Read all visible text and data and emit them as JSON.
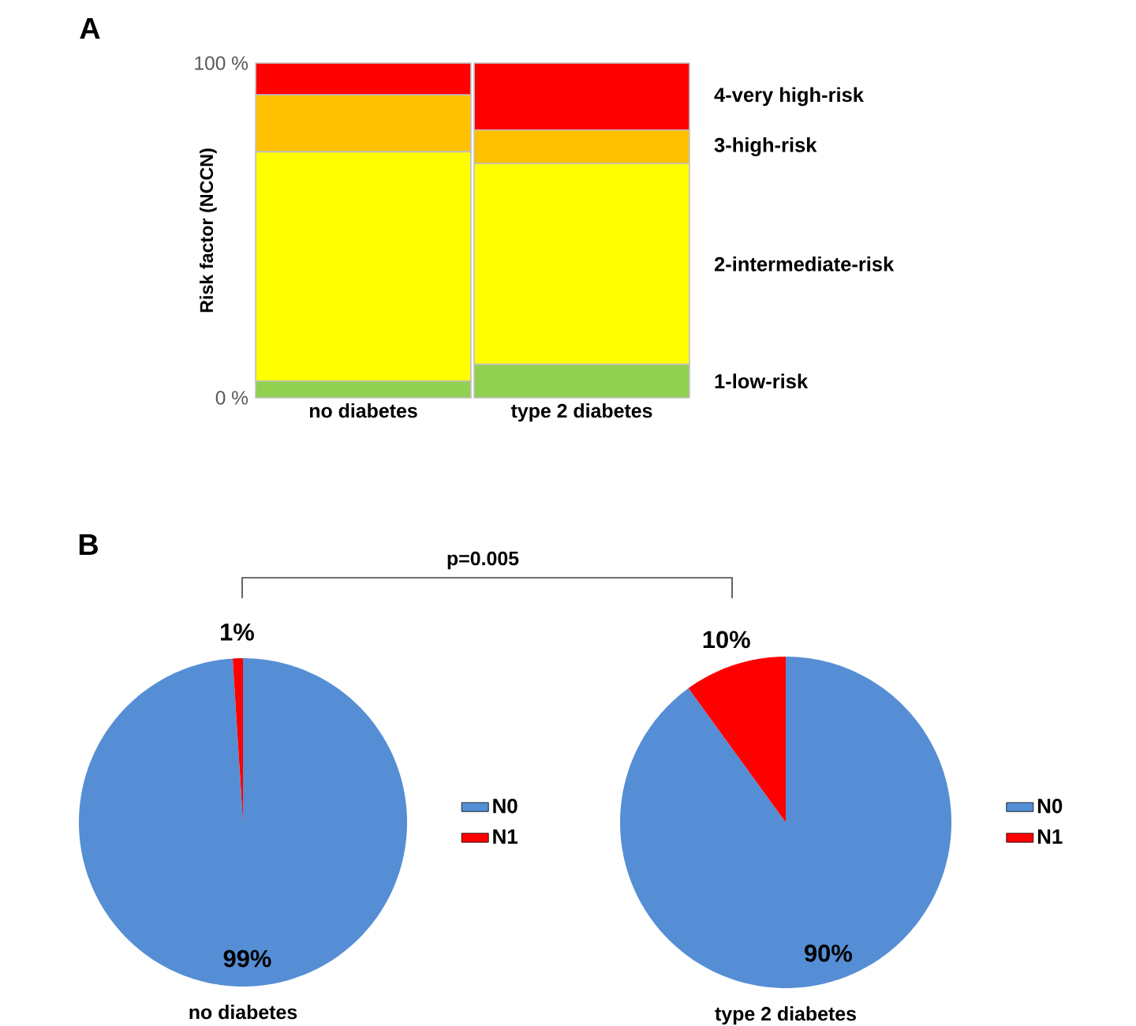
{
  "chart_data": [
    {
      "type": "bar",
      "title": "A",
      "stacked": true,
      "categories": [
        "no diabetes",
        "type 2 diabetes"
      ],
      "ylabel": "Risk factor (NCCN)",
      "ylim": [
        0,
        100
      ],
      "yticks": [
        {
          "value": 0,
          "label": "0 %"
        },
        {
          "value": 100,
          "label": "100 %"
        }
      ],
      "series": [
        {
          "name": "1-low-risk",
          "color": "#92d050",
          "values": [
            5,
            10
          ]
        },
        {
          "name": "2-intermediate-risk",
          "color": "#ffff00",
          "values": [
            68.5,
            60
          ]
        },
        {
          "name": "3-high-risk",
          "color": "#ffc000",
          "values": [
            17,
            10
          ]
        },
        {
          "name": "4-very high-risk",
          "color": "#ff0000",
          "values": [
            9.5,
            20
          ]
        }
      ]
    },
    {
      "type": "pie",
      "title": "B",
      "xlabel": "no diabetes",
      "categories": [
        "N0",
        "N1"
      ],
      "values": [
        99,
        1
      ],
      "colors": [
        "#558ed5",
        "#ff0000"
      ],
      "value_labels": [
        "99%",
        "1%"
      ],
      "legend": "right",
      "annotations": [
        "p=0.005"
      ]
    },
    {
      "type": "pie",
      "xlabel": "type 2 diabetes",
      "categories": [
        "N0",
        "N1"
      ],
      "values": [
        90,
        10
      ],
      "colors": [
        "#558ed5",
        "#ff0000"
      ],
      "value_labels": [
        "90%",
        "10%"
      ],
      "legend": "right"
    }
  ]
}
